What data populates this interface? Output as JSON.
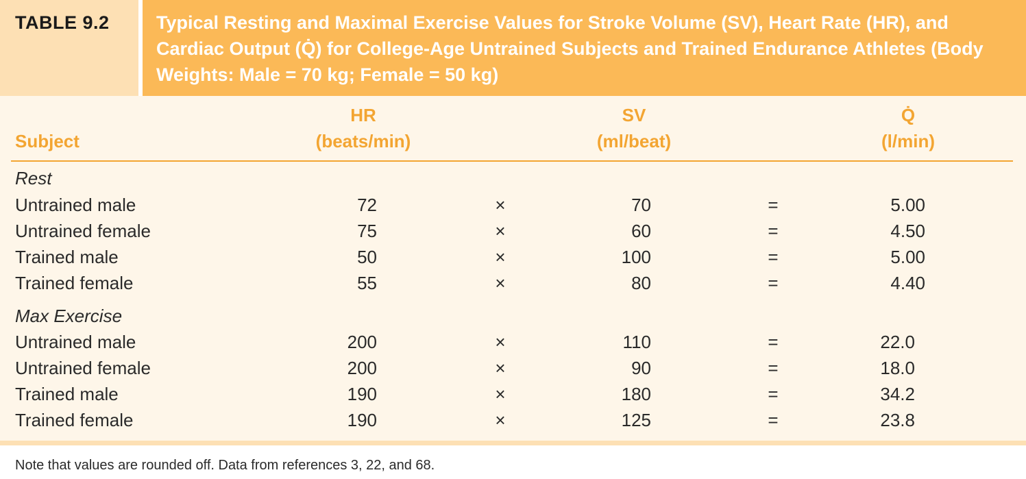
{
  "table_label": "TABLE 9.2",
  "title": "Typical Resting and Maximal Exercise Values for Stroke Volume (SV), Heart Rate (HR), and Cardiac Output (Q̇) for College-Age Untrained Subjects and Trained Endurance Athletes (Body Weights: Male = 70 kg; Female = 50 kg)",
  "columns": {
    "subject": "Subject",
    "hr": "HR",
    "hr_unit": "(beats/min)",
    "sv": "SV",
    "sv_unit": "(ml/beat)",
    "q": "Q̇",
    "q_unit": "(l/min)"
  },
  "operators": {
    "times": "×",
    "equals": "="
  },
  "sections": [
    {
      "name": "Rest",
      "rows": [
        {
          "subject": "Untrained male",
          "hr": "72",
          "sv": "70",
          "q": "5.00"
        },
        {
          "subject": "Untrained female",
          "hr": "75",
          "sv": "60",
          "q": "4.50"
        },
        {
          "subject": "Trained male",
          "hr": "50",
          "sv": "100",
          "q": "5.00"
        },
        {
          "subject": "Trained female",
          "hr": "55",
          "sv": "80",
          "q": "4.40"
        }
      ]
    },
    {
      "name": "Max Exercise",
      "rows": [
        {
          "subject": "Untrained male",
          "hr": "200",
          "sv": "110",
          "q": "22.0"
        },
        {
          "subject": "Untrained female",
          "hr": "200",
          "sv": "90",
          "q": "18.0"
        },
        {
          "subject": "Trained male",
          "hr": "190",
          "sv": "180",
          "q": "34.2"
        },
        {
          "subject": "Trained female",
          "hr": "190",
          "sv": "125",
          "q": "23.8"
        }
      ]
    }
  ],
  "note": "Note that values are rounded off. Data from references 3, 22, and 68.",
  "colors": {
    "title_band": "#fbb957",
    "label_band": "#fde0b4",
    "body_band": "#fef6e9",
    "header_text": "#f3a532"
  }
}
